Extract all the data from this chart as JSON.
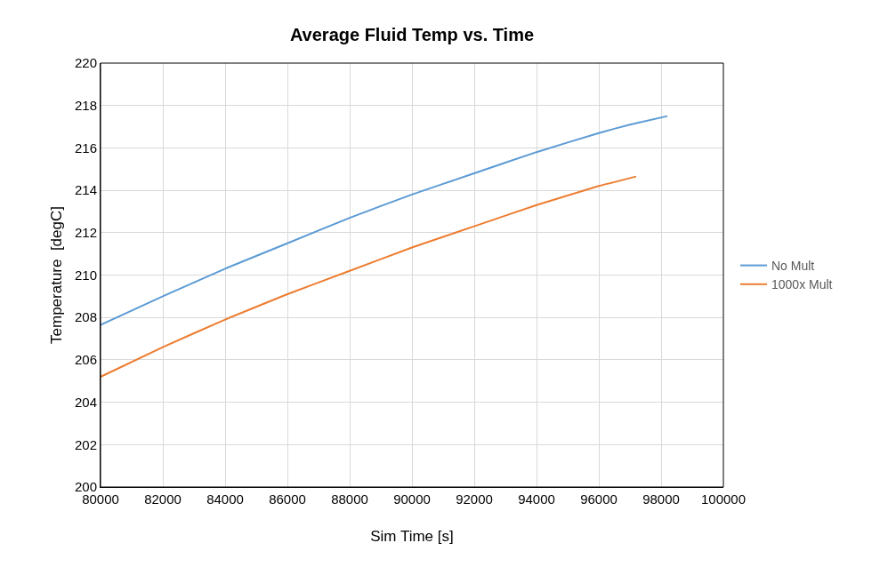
{
  "chart_data": {
    "type": "line",
    "title": "Average Fluid Temp vs. Time",
    "xlabel": "Sim Time [s]",
    "ylabel": "Temperature  [degC]",
    "x": [
      80000,
      82000,
      84000,
      86000,
      88000,
      90000,
      92000,
      94000,
      96000,
      97000,
      98200
    ],
    "series": [
      {
        "name": "No Mult",
        "color": "#5b9bd5",
        "values": [
          207.65,
          209.0,
          210.3,
          211.5,
          212.7,
          213.8,
          214.8,
          215.8,
          216.7,
          217.1,
          217.5
        ]
      },
      {
        "name": "1000x Mult",
        "color": "#ed7d31",
        "x": [
          80000,
          82000,
          84000,
          86000,
          88000,
          90000,
          92000,
          94000,
          96000,
          97200
        ],
        "values": [
          205.2,
          206.6,
          207.9,
          209.1,
          210.2,
          211.3,
          212.3,
          213.3,
          214.2,
          214.65
        ]
      }
    ],
    "xlim": [
      80000,
      100000
    ],
    "xticks": [
      80000,
      82000,
      84000,
      86000,
      88000,
      90000,
      92000,
      94000,
      96000,
      98000,
      100000
    ],
    "ylim": [
      200,
      220
    ],
    "yticks": [
      200,
      202,
      204,
      206,
      208,
      210,
      212,
      214,
      216,
      218,
      220
    ],
    "grid": true,
    "legend": "right",
    "marker": "none",
    "line_style": "solid"
  }
}
